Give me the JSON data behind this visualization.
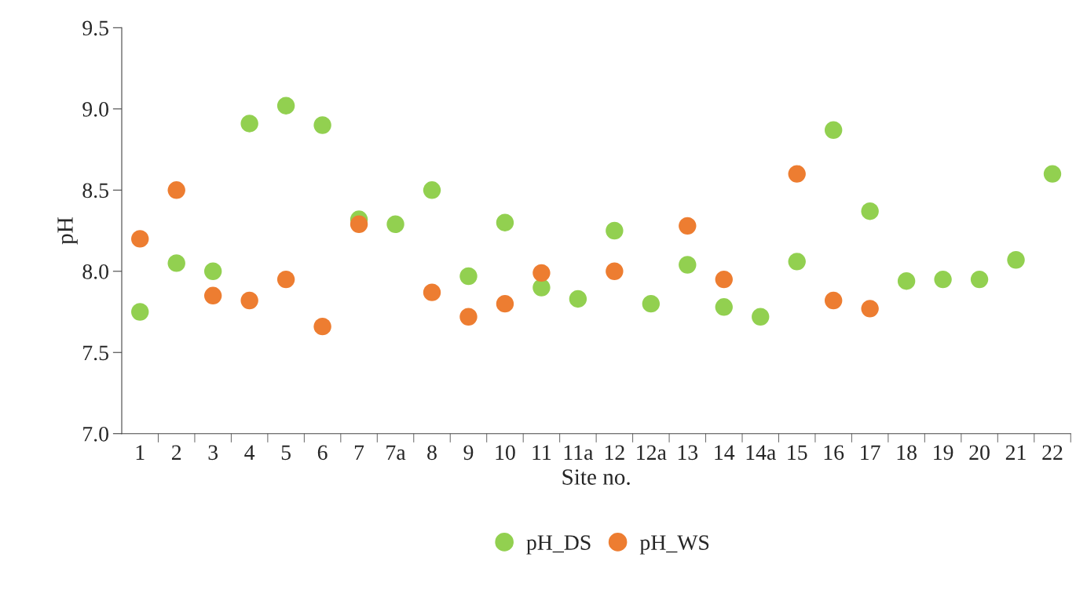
{
  "chart_data": {
    "type": "scatter",
    "xlabel": "Site no.",
    "ylabel": "pH",
    "categories": [
      "1",
      "2",
      "3",
      "4",
      "5",
      "6",
      "7",
      "7a",
      "8",
      "9",
      "10",
      "11",
      "11a",
      "12",
      "12a",
      "13",
      "14",
      "14a",
      "15",
      "16",
      "17",
      "18",
      "19",
      "20",
      "21",
      "22"
    ],
    "series": [
      {
        "name": "pH_DS",
        "color": "#92d050",
        "values": [
          7.75,
          8.05,
          8.0,
          8.91,
          9.02,
          8.9,
          8.32,
          8.29,
          8.5,
          7.97,
          8.3,
          7.9,
          7.83,
          8.25,
          7.8,
          8.04,
          7.78,
          7.72,
          8.06,
          8.87,
          8.37,
          7.94,
          7.95,
          7.95,
          8.07,
          8.6
        ]
      },
      {
        "name": "pH_WS",
        "color": "#ed7d31",
        "values": [
          8.2,
          8.5,
          7.85,
          7.82,
          7.95,
          7.66,
          8.29,
          null,
          7.87,
          7.72,
          7.8,
          7.99,
          null,
          8.0,
          null,
          8.28,
          7.95,
          null,
          8.6,
          7.82,
          7.77,
          null,
          null,
          null,
          null,
          null
        ]
      }
    ],
    "ylim": [
      7.0,
      9.5
    ],
    "yticks": [
      {
        "value": 7.0,
        "label": "7.0"
      },
      {
        "value": 7.5,
        "label": "7.5"
      },
      {
        "value": 8.0,
        "label": "8.0"
      },
      {
        "value": 8.5,
        "label": "8.5"
      },
      {
        "value": 9.0,
        "label": "9.0"
      },
      {
        "value": 9.5,
        "label": "9.5"
      }
    ],
    "marker": "circle",
    "legend": "bottom",
    "grid": false
  }
}
